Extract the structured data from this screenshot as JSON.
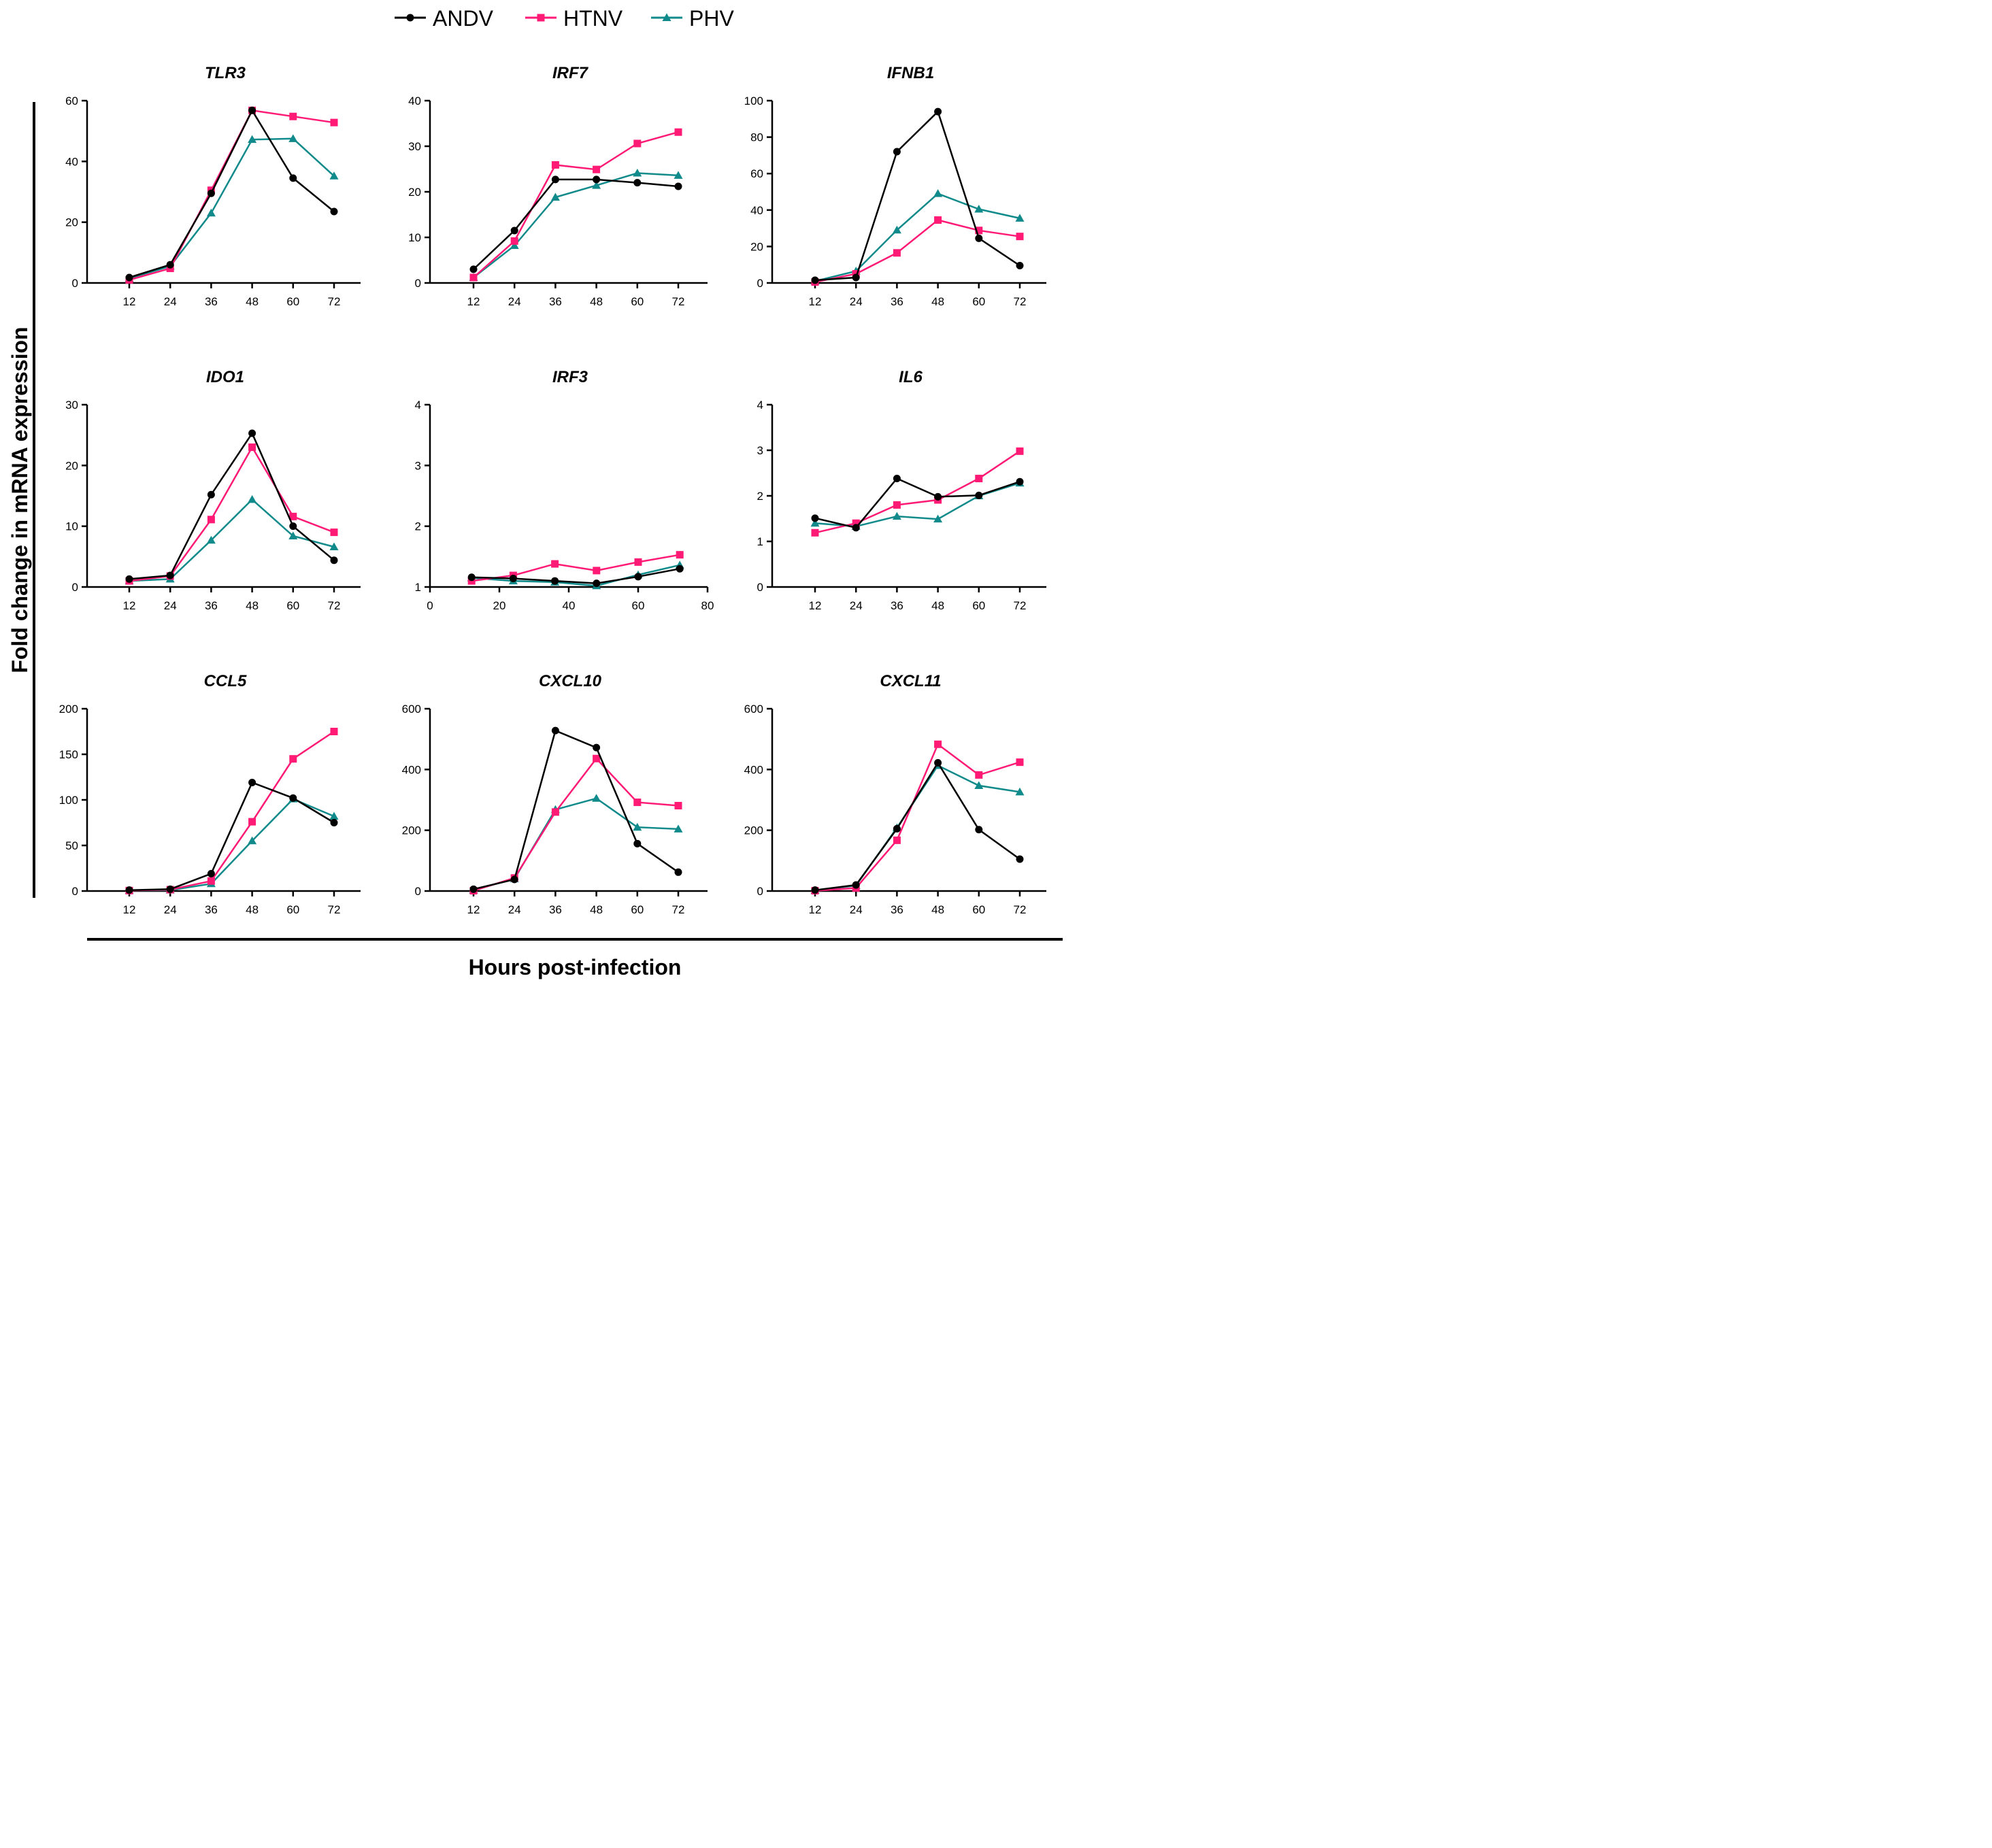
{
  "legend": {
    "position": "top-center",
    "entries": [
      {
        "name": "ANDV",
        "marker": "circle",
        "color": "#000000"
      },
      {
        "name": "HTNV",
        "marker": "square",
        "color": "#FF1A75"
      },
      {
        "name": "PHV",
        "marker": "triangle",
        "color": "#108A8A"
      }
    ]
  },
  "axis_titles": {
    "y": "Fold change in mRNA expression",
    "x": "Hours post-infection"
  },
  "chart_data": [
    {
      "type": "line",
      "title": "TLR3",
      "categories": [
        "12",
        "24",
        "36",
        "48",
        "60",
        "72"
      ],
      "ylim": [
        0,
        60
      ],
      "yticks": [
        "0",
        "20",
        "40",
        "60"
      ],
      "series": [
        {
          "name": "ANDV",
          "values": [
            1.8,
            6.0,
            29.5,
            56.8,
            34.5,
            23.5
          ]
        },
        {
          "name": "HTNV",
          "values": [
            1.0,
            4.8,
            30.5,
            56.8,
            54.8,
            52.8
          ]
        },
        {
          "name": "PHV",
          "values": [
            1.5,
            5.5,
            23.0,
            47.2,
            47.5,
            35.2
          ]
        }
      ]
    },
    {
      "type": "line",
      "title": "IRF7",
      "categories": [
        "12",
        "24",
        "36",
        "48",
        "60",
        "72"
      ],
      "ylim": [
        0,
        40
      ],
      "yticks": [
        "0",
        "10",
        "20",
        "30",
        "40"
      ],
      "series": [
        {
          "name": "ANDV",
          "values": [
            3.0,
            11.5,
            22.7,
            22.7,
            22.0,
            21.2
          ]
        },
        {
          "name": "HTNV",
          "values": [
            1.2,
            9.2,
            25.9,
            24.9,
            30.6,
            33.1
          ]
        },
        {
          "name": "PHV",
          "values": [
            1.2,
            8.2,
            18.8,
            21.4,
            24.1,
            23.6
          ]
        }
      ]
    },
    {
      "type": "line",
      "title": "IFNB1",
      "categories": [
        "12",
        "24",
        "36",
        "48",
        "60",
        "72"
      ],
      "ylim": [
        0,
        100
      ],
      "yticks": [
        "0",
        "20",
        "40",
        "60",
        "80",
        "100"
      ],
      "series": [
        {
          "name": "ANDV",
          "values": [
            1.5,
            3.0,
            72.0,
            94.0,
            24.5,
            9.5
          ]
        },
        {
          "name": "HTNV",
          "values": [
            0.5,
            5.0,
            16.5,
            34.5,
            28.8,
            25.5
          ]
        },
        {
          "name": "PHV",
          "values": [
            1.0,
            6.5,
            29.0,
            49.0,
            40.5,
            35.5
          ]
        }
      ]
    },
    {
      "type": "line",
      "title": "IDO1",
      "categories": [
        "12",
        "24",
        "36",
        "48",
        "60",
        "72"
      ],
      "ylim": [
        0,
        30
      ],
      "yticks": [
        "0",
        "10",
        "20",
        "30"
      ],
      "series": [
        {
          "name": "ANDV",
          "values": [
            1.3,
            1.9,
            15.2,
            25.3,
            10.0,
            4.4
          ]
        },
        {
          "name": "HTNV",
          "values": [
            1.0,
            1.8,
            11.1,
            23.0,
            11.6,
            9.0
          ]
        },
        {
          "name": "PHV",
          "values": [
            1.0,
            1.3,
            7.7,
            14.4,
            8.4,
            6.6
          ]
        }
      ]
    },
    {
      "type": "line",
      "title": "IRF3",
      "x_numeric": true,
      "x": [
        12,
        24,
        36,
        48,
        60,
        72
      ],
      "xlim": [
        0,
        80
      ],
      "xticks": [
        "0",
        "20",
        "40",
        "60",
        "80"
      ],
      "ylim": [
        1,
        4
      ],
      "yticks": [
        "1",
        "2",
        "3",
        "4"
      ],
      "series": [
        {
          "name": "ANDV",
          "values": [
            1.16,
            1.14,
            1.1,
            1.06,
            1.17,
            1.3
          ]
        },
        {
          "name": "HTNV",
          "values": [
            1.1,
            1.19,
            1.38,
            1.27,
            1.41,
            1.53
          ]
        },
        {
          "name": "PHV",
          "values": [
            1.15,
            1.1,
            1.08,
            1.02,
            1.2,
            1.36
          ]
        }
      ]
    },
    {
      "type": "line",
      "title": "IL6",
      "categories": [
        "12",
        "24",
        "36",
        "48",
        "60",
        "72"
      ],
      "ylim": [
        0,
        4
      ],
      "yticks": [
        "0",
        "1",
        "2",
        "3",
        "4"
      ],
      "series": [
        {
          "name": "ANDV",
          "values": [
            1.51,
            1.3,
            2.38,
            1.98,
            2.01,
            2.31
          ]
        },
        {
          "name": "HTNV",
          "values": [
            1.19,
            1.4,
            1.8,
            1.91,
            2.38,
            2.98
          ]
        },
        {
          "name": "PHV",
          "values": [
            1.4,
            1.33,
            1.55,
            1.49,
            2.0,
            2.28
          ]
        }
      ]
    },
    {
      "type": "line",
      "title": "CCL5",
      "categories": [
        "12",
        "24",
        "36",
        "48",
        "60",
        "72"
      ],
      "ylim": [
        0,
        200
      ],
      "yticks": [
        "0",
        "50",
        "100",
        "150",
        "200"
      ],
      "series": [
        {
          "name": "ANDV",
          "values": [
            1.0,
            2.0,
            19.0,
            119.0,
            102.0,
            75.0
          ]
        },
        {
          "name": "HTNV",
          "values": [
            0.5,
            1.5,
            11.0,
            76.0,
            145.0,
            175.0
          ]
        },
        {
          "name": "PHV",
          "values": [
            0.5,
            1.0,
            8.0,
            55.0,
            101.0,
            82.0
          ]
        }
      ]
    },
    {
      "type": "line",
      "title": "CXCL10",
      "categories": [
        "12",
        "24",
        "36",
        "48",
        "60",
        "72"
      ],
      "ylim": [
        0,
        600
      ],
      "yticks": [
        "0",
        "200",
        "400",
        "600"
      ],
      "series": [
        {
          "name": "ANDV",
          "values": [
            6.0,
            38.0,
            528.0,
            472.0,
            156.0,
            62.0
          ]
        },
        {
          "name": "HTNV",
          "values": [
            1.0,
            43.0,
            260.0,
            436.0,
            292.0,
            281.0
          ]
        },
        {
          "name": "PHV",
          "values": [
            3.0,
            40.0,
            268.0,
            305.0,
            210.0,
            204.0
          ]
        }
      ]
    },
    {
      "type": "line",
      "title": "CXCL11",
      "categories": [
        "12",
        "24",
        "36",
        "48",
        "60",
        "72"
      ],
      "ylim": [
        0,
        600
      ],
      "yticks": [
        "0",
        "200",
        "400",
        "600"
      ],
      "series": [
        {
          "name": "ANDV",
          "values": [
            3.0,
            20.0,
            205.0,
            422.0,
            202.0,
            105.0
          ]
        },
        {
          "name": "HTNV",
          "values": [
            1.0,
            10.0,
            167.0,
            483.0,
            382.0,
            424.0
          ]
        },
        {
          "name": "PHV",
          "values": [
            2.0,
            18.0,
            208.0,
            413.0,
            347.0,
            326.0
          ]
        }
      ]
    }
  ]
}
